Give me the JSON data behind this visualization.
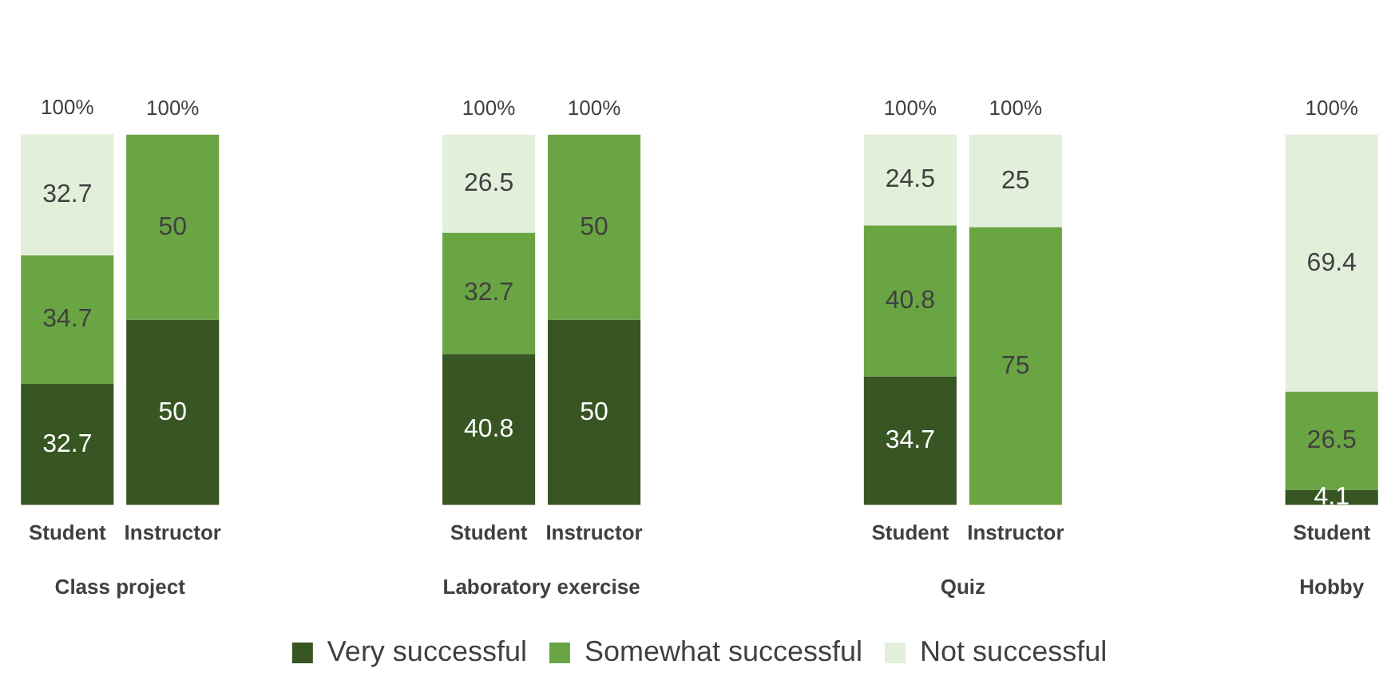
{
  "chart_data": {
    "type": "bar",
    "stacked": true,
    "data_labels": true,
    "legend": "bottom",
    "grid": false,
    "categories": [
      "Student",
      "Instructor",
      null,
      null,
      "Student",
      "Instructor",
      null,
      null,
      "Student",
      "Instructor",
      null,
      null,
      "Student"
    ],
    "annotations": [
      "Class project",
      "Laboratory exercise",
      "Quiz",
      "Hobby"
    ],
    "totals": [
      "100%",
      "100%",
      null,
      null,
      "100%",
      "100%",
      null,
      null,
      "100%",
      "100%",
      null,
      null,
      "100%"
    ],
    "series": [
      {
        "name": "Very successful",
        "color": "#375623",
        "values": [
          32.7,
          50,
          null,
          null,
          40.8,
          50,
          null,
          null,
          34.7,
          null,
          null,
          null,
          4.1
        ]
      },
      {
        "name": "Somewhat successful",
        "color": "#6aa544",
        "values": [
          34.7,
          50,
          null,
          null,
          32.7,
          50,
          null,
          null,
          40.8,
          75,
          null,
          null,
          26.5
        ]
      },
      {
        "name": "Not successful",
        "color": "#e2efda",
        "values": [
          32.7,
          null,
          null,
          null,
          26.5,
          null,
          null,
          null,
          24.5,
          25,
          null,
          null,
          69.4
        ]
      }
    ]
  }
}
